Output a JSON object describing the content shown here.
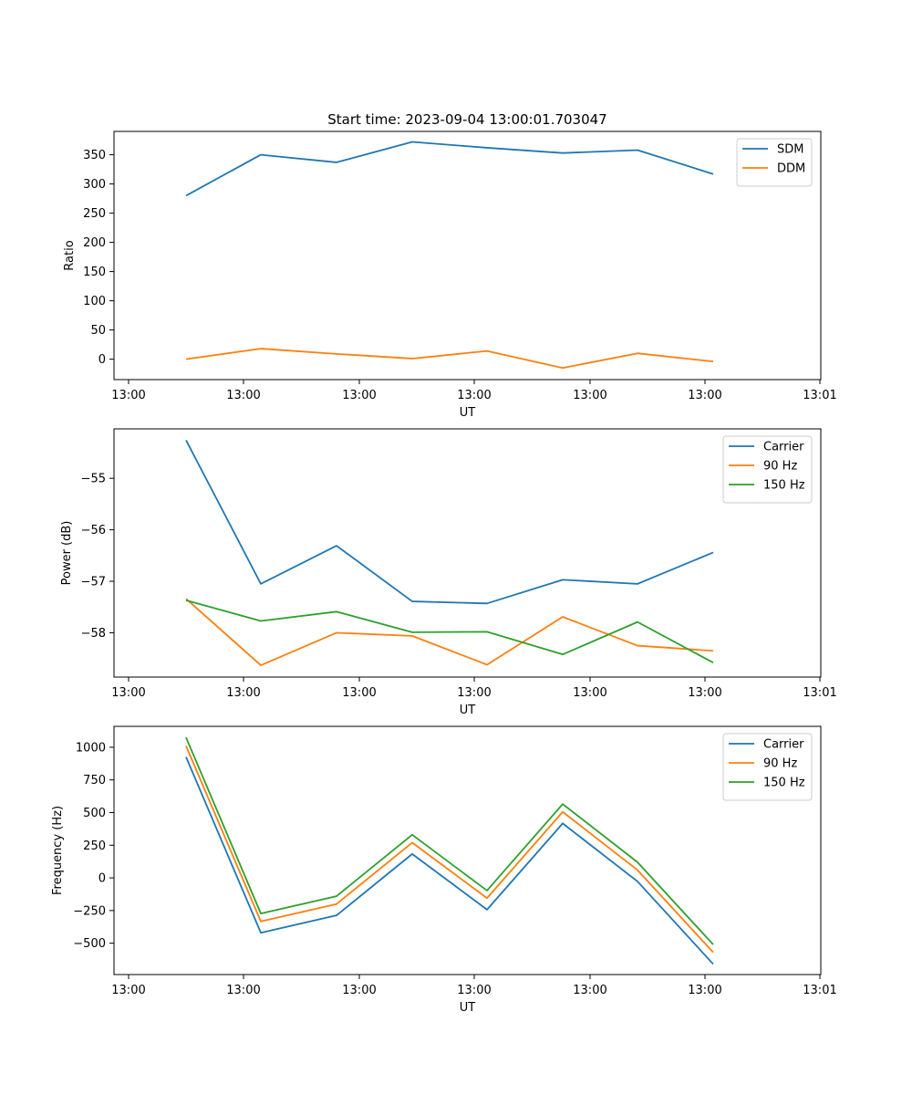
{
  "chart_data": [
    {
      "type": "line",
      "title": "Start time: 2023-09-04 13:00:01.703047",
      "xlabel": "UT",
      "ylabel": "Ratio",
      "x_tick_labels": [
        "13:00",
        "13:00",
        "13:00",
        "13:00",
        "13:00",
        "13:00",
        "13:01"
      ],
      "y_ticks": [
        0,
        50,
        100,
        150,
        200,
        250,
        300,
        350
      ],
      "y_tick_labels": [
        "0",
        "50",
        "100",
        "150",
        "200",
        "250",
        "300",
        "350"
      ],
      "ylim": [
        -35,
        390
      ],
      "legend_position": "top-right",
      "series": [
        {
          "name": "SDM",
          "color": "#1f77b4",
          "values": [
            280,
            350,
            337,
            372,
            362,
            353,
            358,
            317
          ]
        },
        {
          "name": "DDM",
          "color": "#ff7f0e",
          "values": [
            0,
            18,
            9,
            1,
            14,
            -15,
            10,
            -4
          ]
        }
      ]
    },
    {
      "type": "line",
      "title": "",
      "xlabel": "UT",
      "ylabel": "Power (dB)",
      "x_tick_labels": [
        "13:00",
        "13:00",
        "13:00",
        "13:00",
        "13:00",
        "13:00",
        "13:01"
      ],
      "y_ticks": [
        -58,
        -57,
        -56,
        -55
      ],
      "y_tick_labels": [
        "−58",
        "−57",
        "−56",
        "−55"
      ],
      "ylim": [
        -58.86,
        -54.04
      ],
      "legend_position": "top-right",
      "series": [
        {
          "name": "Carrier",
          "color": "#1f77b4",
          "values": [
            -54.26,
            -57.05,
            -56.31,
            -57.39,
            -57.43,
            -56.97,
            -57.05,
            -56.44
          ]
        },
        {
          "name": "90 Hz",
          "color": "#ff7f0e",
          "values": [
            -57.34,
            -58.63,
            -58.0,
            -58.06,
            -58.62,
            -57.69,
            -58.25,
            -58.35
          ]
        },
        {
          "name": "150 Hz",
          "color": "#2ca02c",
          "values": [
            -57.37,
            -57.77,
            -57.59,
            -57.99,
            -57.98,
            -58.42,
            -57.79,
            -58.58
          ]
        }
      ]
    },
    {
      "type": "line",
      "title": "",
      "xlabel": "UT",
      "ylabel": "Frequency (Hz)",
      "x_tick_labels": [
        "13:00",
        "13:00",
        "13:00",
        "13:00",
        "13:00",
        "13:00",
        "13:01"
      ],
      "y_ticks": [
        -500,
        -250,
        0,
        250,
        500,
        750,
        1000
      ],
      "y_tick_labels": [
        "−500",
        "−250",
        "0",
        "250",
        "500",
        "750",
        "1000"
      ],
      "ylim": [
        -740,
        1160
      ],
      "legend_position": "top-right",
      "series": [
        {
          "name": "Carrier",
          "color": "#1f77b4",
          "values": [
            925,
            -420,
            -287,
            183,
            -243,
            417,
            -27,
            -660
          ]
        },
        {
          "name": "90 Hz",
          "color": "#ff7f0e",
          "values": [
            1010,
            -333,
            -200,
            270,
            -155,
            505,
            60,
            -570
          ]
        },
        {
          "name": "150 Hz",
          "color": "#2ca02c",
          "values": [
            1075,
            -273,
            -140,
            330,
            -97,
            565,
            120,
            -510
          ]
        }
      ]
    }
  ]
}
